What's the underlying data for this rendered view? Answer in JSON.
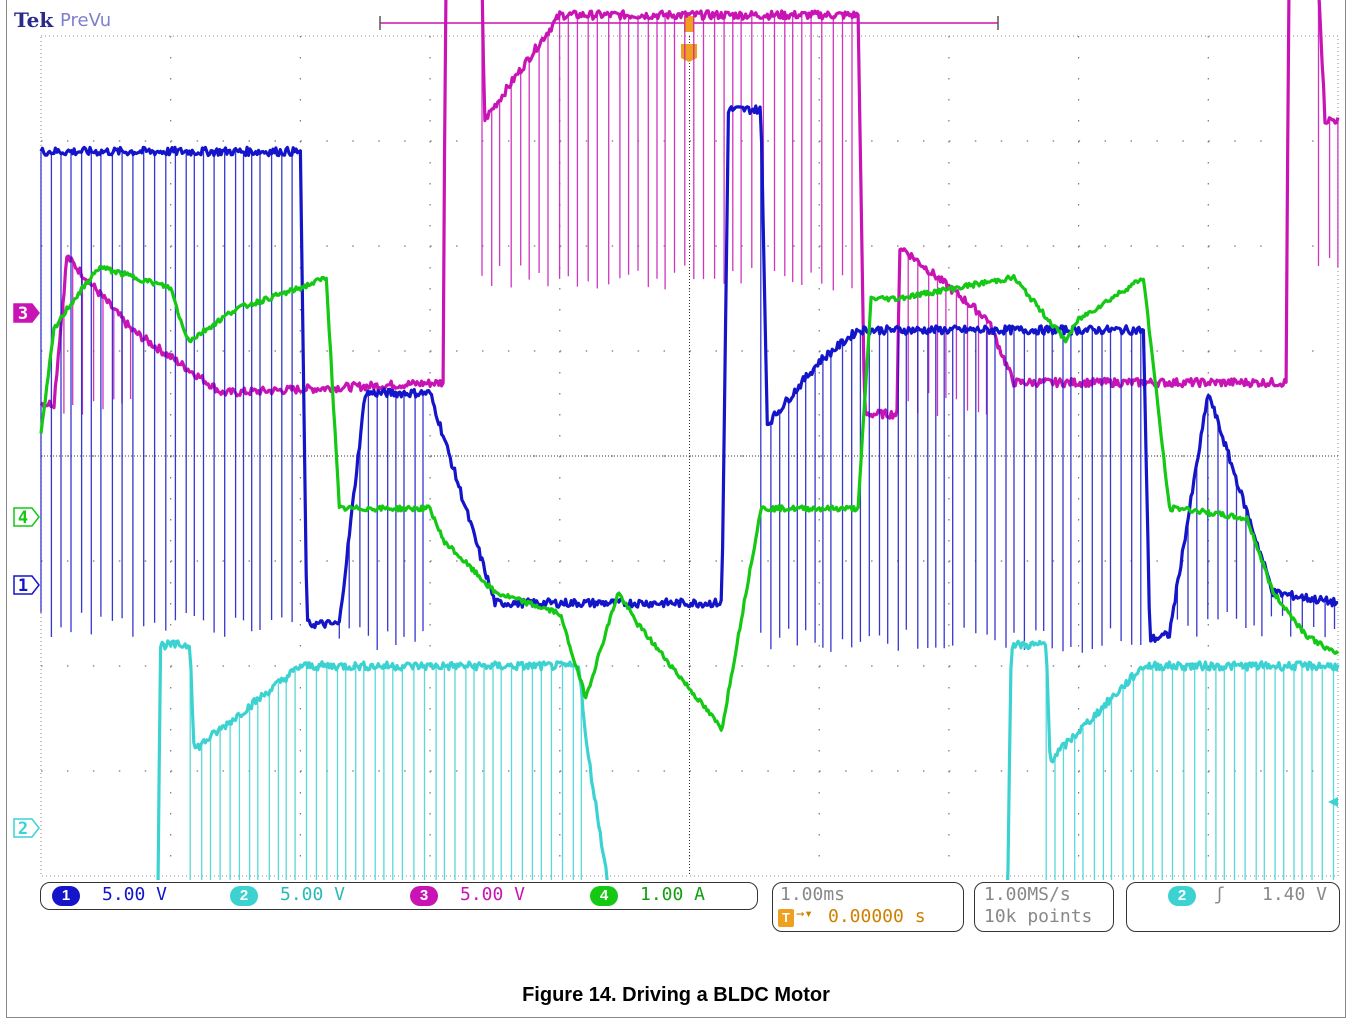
{
  "header": {
    "brand": "Tek",
    "mode": "PreVu"
  },
  "caption": "Figure 14. Driving a BLDC Motor",
  "chart_data": {
    "type": "line",
    "title": "Figure 14. Driving a BLDC Motor",
    "time_per_div": "1.00ms",
    "trigger_position": "0.00000 s",
    "sample_rate": "1.00MS/s",
    "record_length": "10k points",
    "trigger": {
      "channel": "2",
      "slope": "rising",
      "level": "1.40 V"
    },
    "grid": true,
    "divisions": {
      "x": 10,
      "y": 8
    },
    "x_unit": "ms",
    "xlim": [
      -5,
      5
    ],
    "channels": [
      {
        "id": "1",
        "scale": "5.00 V",
        "color": "#1414c8",
        "marker_text": "1",
        "chip_text": "1"
      },
      {
        "id": "2",
        "scale": "5.00 V",
        "color": "#3cd2d2",
        "marker_text": "2",
        "chip_text": "2"
      },
      {
        "id": "3",
        "scale": "5.00 V",
        "color": "#c814b4",
        "marker_text": "3",
        "chip_text": "3"
      },
      {
        "id": "4",
        "scale": "1.00 A",
        "color": "#14c814",
        "marker_text": "4",
        "chip_text": "4"
      }
    ],
    "series": [
      {
        "name": "1",
        "kind": "pwm",
        "x": [
          -5.0,
          -3.0,
          -2.95,
          -2.7,
          -2.5,
          -2.0,
          -1.5,
          -0.5,
          0.0,
          0.25,
          0.3,
          0.55,
          0.6,
          1.0,
          1.3,
          2.0,
          3.5,
          3.55,
          3.7,
          4.0,
          4.5,
          5.0
        ],
        "y": [
          2.9,
          2.9,
          -1.6,
          -1.6,
          0.6,
          0.6,
          -1.4,
          -1.4,
          -1.4,
          -1.4,
          3.3,
          3.3,
          0.3,
          0.9,
          1.2,
          1.2,
          1.2,
          -1.75,
          -1.7,
          0.6,
          -1.3,
          -1.4
        ],
        "pwm": [
          [
            -5.0,
            -3.0,
            -1.6
          ],
          [
            -2.7,
            -2.0,
            -1.75
          ],
          [
            0.55,
            3.5,
            -1.75
          ],
          [
            3.7,
            5.0,
            -1.6
          ]
        ]
      },
      {
        "name": "2",
        "kind": "pwm",
        "x": [
          -5.0,
          -4.1,
          -4.08,
          -3.85,
          -3.82,
          -3.0,
          -0.85,
          -0.8,
          -0.55,
          -0.5,
          0.25,
          0.3,
          2.45,
          2.48,
          2.75,
          2.78,
          3.5,
          5.0
        ],
        "y": [
          -4.4,
          -4.4,
          -1.8,
          -1.8,
          -2.8,
          -2.0,
          -2.0,
          -2.7,
          -4.7,
          -4.7,
          -4.4,
          -4.4,
          -4.4,
          -1.8,
          -1.8,
          -2.9,
          -2.0,
          -2.0
        ],
        "pwm": [
          [
            -3.85,
            -0.8,
            -4.4
          ],
          [
            -0.55,
            0.25,
            -4.5
          ],
          [
            2.75,
            5.0,
            -4.4
          ]
        ]
      },
      {
        "name": "3",
        "kind": "pwm",
        "x": [
          -5.0,
          -4.9,
          -4.8,
          -4.3,
          -3.6,
          -1.9,
          -1.88,
          -1.6,
          -1.58,
          -1.0,
          1.3,
          1.35,
          1.6,
          1.62,
          2.3,
          2.5,
          4.6,
          4.62,
          4.85,
          4.9,
          5.0
        ],
        "y": [
          0.5,
          0.5,
          1.9,
          1.2,
          0.6,
          0.7,
          4.5,
          4.5,
          3.2,
          4.2,
          4.2,
          0.4,
          0.4,
          2.0,
          1.3,
          0.7,
          0.7,
          4.5,
          4.5,
          3.2,
          3.2
        ],
        "pwm": [
          [
            -4.9,
            -4.3,
            0.5
          ],
          [
            -1.6,
            1.3,
            1.7
          ],
          [
            1.6,
            2.3,
            0.5
          ],
          [
            4.85,
            5.0,
            1.8
          ]
        ]
      },
      {
        "name": "4",
        "kind": "analog",
        "x": [
          -5.0,
          -4.9,
          -4.8,
          -4.55,
          -4.0,
          -3.9,
          -3.85,
          -3.5,
          -3.0,
          -2.8,
          -2.7,
          -2.0,
          -1.9,
          -1.5,
          -1.0,
          -0.8,
          -0.55,
          -0.4,
          0.25,
          0.55,
          1.3,
          1.4,
          1.6,
          2.5,
          2.9,
          3.0,
          3.5,
          3.7,
          3.8,
          4.3,
          4.5,
          4.75,
          5.0
        ],
        "y": [
          0.2,
          1.2,
          1.4,
          1.8,
          1.6,
          1.2,
          1.1,
          1.4,
          1.6,
          1.7,
          -0.5,
          -0.5,
          -0.8,
          -1.3,
          -1.5,
          -2.3,
          -1.3,
          -1.6,
          -2.6,
          -0.5,
          -0.5,
          1.5,
          1.5,
          1.7,
          1.1,
          1.3,
          1.7,
          -0.5,
          -0.5,
          -0.6,
          -1.3,
          -1.7,
          -1.9
        ]
      }
    ]
  },
  "readouts": {
    "timebase": "1.00ms",
    "trigger_pos": "0.00000 s",
    "trigger_prefix": "T",
    "sample_rate": "1.00MS/s",
    "record_length": "10k points",
    "trig_channel": "2",
    "trig_slope": "ʃ",
    "trig_level": "1.40 V"
  }
}
